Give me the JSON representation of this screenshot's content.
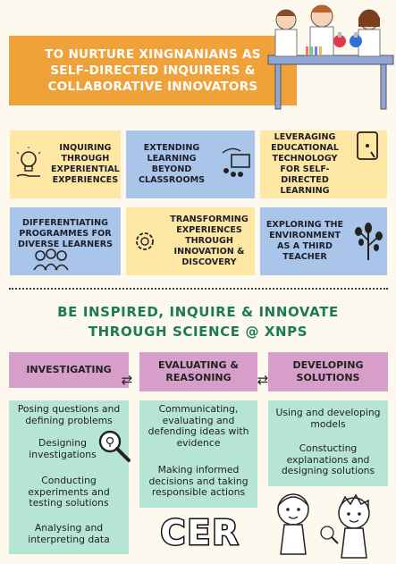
{
  "header": {
    "lines": [
      "TO NURTURE XINGNANIANS AS",
      "SELF-DIRECTED INQUIRERS &",
      "COLLABORATIVE INNOVATORS"
    ]
  },
  "pillars": [
    {
      "text": "INQUIRING THROUGH EXPERIENTIAL EXPERIENCES",
      "icon": "lightbulb-hand-icon"
    },
    {
      "text": "EXTENDING LEARNING BEYOND CLASSROOMS",
      "icon": "outdoor-classroom-icon"
    },
    {
      "text": "LEVERAGING EDUCATIONAL TECHNOLOGY FOR SELF-DIRECTED LEARNING",
      "icon": "tablet-touch-icon"
    },
    {
      "text": "DIFFERENTIATING PROGRAMMES FOR DIVERSE LEARNERS",
      "icon": "people-group-icon"
    },
    {
      "text": "TRANSFORMING EXPERIENCES THROUGH INNOVATION & DISCOVERY",
      "icon": "gear-idea-icon"
    },
    {
      "text": "EXPLORING THE ENVIRONMENT AS A THIRD TEACHER",
      "icon": "tree-icon"
    }
  ],
  "main_title": {
    "line1": "BE INSPIRED, INQUIRE & INNOVATE",
    "line2": "THROUGH SCIENCE @ XNPS"
  },
  "stages": [
    {
      "label": "INVESTIGATING"
    },
    {
      "label": "EVALUATING & REASONING"
    },
    {
      "label": "DEVELOPING SOLUTIONS"
    }
  ],
  "investigating_items": [
    "Posing questions and defining problems",
    "Designing investigations",
    "Conducting experiments and testing solutions",
    "Analysing and interpreting data"
  ],
  "evaluating_items": [
    "Communicating, evaluating and defending ideas with evidence",
    "Making informed decisions and taking responsible actions"
  ],
  "developing_items": [
    "Using and developing models",
    "Constucting explanations and designing solutions"
  ],
  "cer": "CER",
  "colors": {
    "header": "#f0a23a",
    "pillar_yellow": "#fde7a3",
    "pillar_blue": "#a9c6ea",
    "title_green": "#1b7a57",
    "stage_pink": "#d79ec9",
    "mint": "#b6e6d3"
  }
}
